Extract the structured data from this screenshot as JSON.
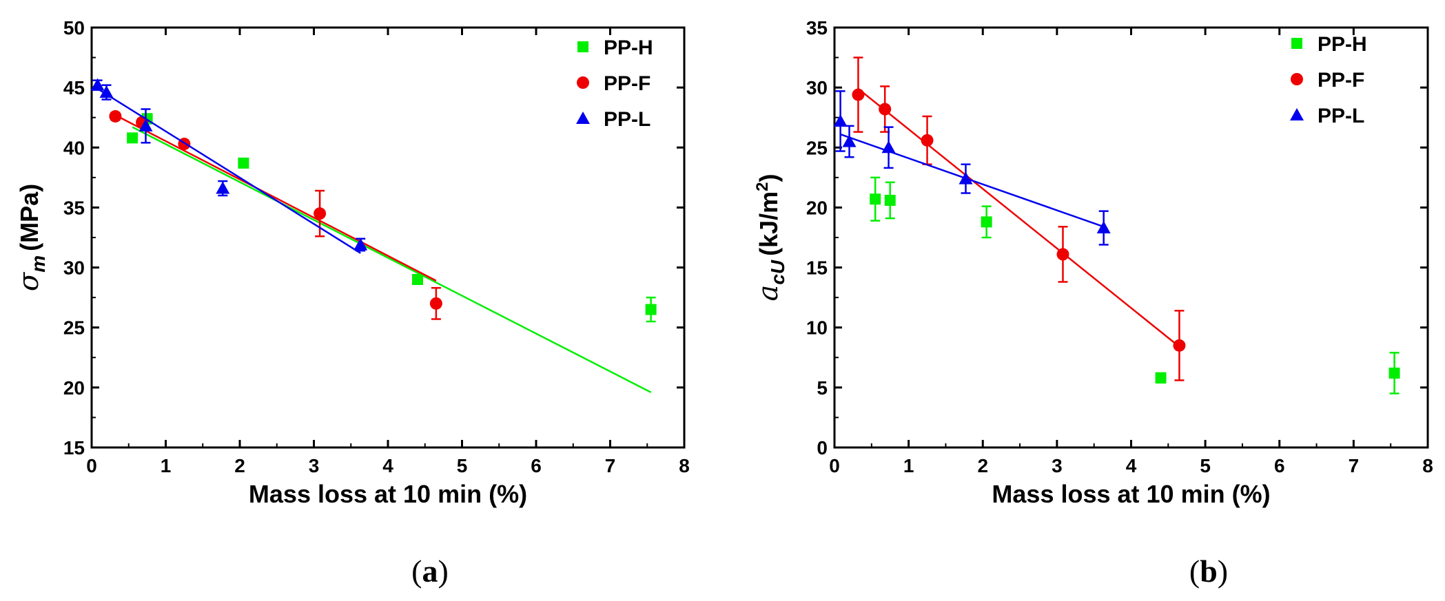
{
  "chart_data": [
    {
      "panel": "(a)",
      "panel_letter": "a",
      "type": "scatter",
      "xlabel": "Mass loss at 10 min (%)",
      "ylabel": {
        "symbol": "σ",
        "subscript": "m",
        "unit": "(MPa)"
      },
      "xlim": [
        0,
        8
      ],
      "ylim": [
        15,
        50
      ],
      "xticks": [
        0,
        1,
        2,
        3,
        4,
        5,
        6,
        7,
        8
      ],
      "yticks": [
        15,
        20,
        25,
        30,
        35,
        40,
        45,
        50
      ],
      "legend_position": "top-right",
      "series": [
        {
          "name": "PP-H",
          "color": "#00ee00",
          "marker": "square",
          "points": [
            {
              "x": 0.55,
              "y": 40.8,
              "err": 0.3
            },
            {
              "x": 0.75,
              "y": 42.4,
              "err": 0.4
            },
            {
              "x": 2.05,
              "y": 38.7,
              "err": 0.3
            },
            {
              "x": 4.4,
              "y": 29.0,
              "err": 0.3
            },
            {
              "x": 7.55,
              "y": 26.5,
              "err": 1.0
            }
          ],
          "fit": [
            [
              0.55,
              41.7
            ],
            [
              7.55,
              19.6
            ]
          ]
        },
        {
          "name": "PP-F",
          "color": "#ee0000",
          "marker": "circle",
          "points": [
            {
              "x": 0.32,
              "y": 42.6,
              "err": 0.3
            },
            {
              "x": 0.68,
              "y": 42.1,
              "err": 0.3
            },
            {
              "x": 1.25,
              "y": 40.3,
              "err": 0.3
            },
            {
              "x": 3.08,
              "y": 34.5,
              "err": 1.9
            },
            {
              "x": 4.65,
              "y": 27.0,
              "err": 1.3
            }
          ],
          "fit": [
            [
              0.32,
              42.7
            ],
            [
              4.65,
              28.9
            ]
          ]
        },
        {
          "name": "PP-L",
          "color": "#0000ee",
          "marker": "triangle",
          "points": [
            {
              "x": 0.08,
              "y": 45.2,
              "err": 0.4
            },
            {
              "x": 0.2,
              "y": 44.6,
              "err": 0.6
            },
            {
              "x": 0.73,
              "y": 41.8,
              "err": 1.4
            },
            {
              "x": 1.77,
              "y": 36.6,
              "err": 0.6
            },
            {
              "x": 3.63,
              "y": 31.9,
              "err": 0.5
            }
          ],
          "fit": [
            [
              0.08,
              44.9
            ],
            [
              3.63,
              31.2
            ]
          ]
        }
      ]
    },
    {
      "panel": "(b)",
      "panel_letter": "b",
      "type": "scatter",
      "xlabel": "Mass loss at 10 min (%)",
      "ylabel": {
        "symbol": "a",
        "subscript": "cU",
        "unit": "(kJ/m",
        "sup": "2",
        "close": ")"
      },
      "xlim": [
        0,
        8
      ],
      "ylim": [
        0,
        35
      ],
      "xticks": [
        0,
        1,
        2,
        3,
        4,
        5,
        6,
        7,
        8
      ],
      "yticks": [
        0,
        5,
        10,
        15,
        20,
        25,
        30,
        35
      ],
      "legend_position": "top-right",
      "series": [
        {
          "name": "PP-H",
          "color": "#00ee00",
          "marker": "square",
          "points": [
            {
              "x": 0.55,
              "y": 20.7,
              "err": 1.8
            },
            {
              "x": 0.75,
              "y": 20.6,
              "err": 1.5
            },
            {
              "x": 2.05,
              "y": 18.8,
              "err": 1.3
            },
            {
              "x": 4.4,
              "y": 5.8,
              "err": 0.4
            },
            {
              "x": 7.55,
              "y": 6.2,
              "err": 1.7
            }
          ],
          "fit": null
        },
        {
          "name": "PP-F",
          "color": "#ee0000",
          "marker": "circle",
          "points": [
            {
              "x": 0.32,
              "y": 29.4,
              "err": 3.1
            },
            {
              "x": 0.68,
              "y": 28.2,
              "err": 1.9
            },
            {
              "x": 1.25,
              "y": 25.6,
              "err": 2.0
            },
            {
              "x": 3.08,
              "y": 16.1,
              "err": 2.3
            },
            {
              "x": 4.65,
              "y": 8.5,
              "err": 2.9
            }
          ],
          "fit": [
            [
              0.32,
              29.9
            ],
            [
              4.65,
              8.4
            ]
          ]
        },
        {
          "name": "PP-L",
          "color": "#0000ee",
          "marker": "triangle",
          "points": [
            {
              "x": 0.08,
              "y": 27.2,
              "err": 2.5
            },
            {
              "x": 0.2,
              "y": 25.5,
              "err": 1.3
            },
            {
              "x": 0.73,
              "y": 25.0,
              "err": 1.7
            },
            {
              "x": 1.77,
              "y": 22.4,
              "err": 1.2
            },
            {
              "x": 3.63,
              "y": 18.3,
              "err": 1.4
            }
          ],
          "fit": [
            [
              0.08,
              26.1
            ],
            [
              3.63,
              18.4
            ]
          ]
        }
      ]
    }
  ]
}
